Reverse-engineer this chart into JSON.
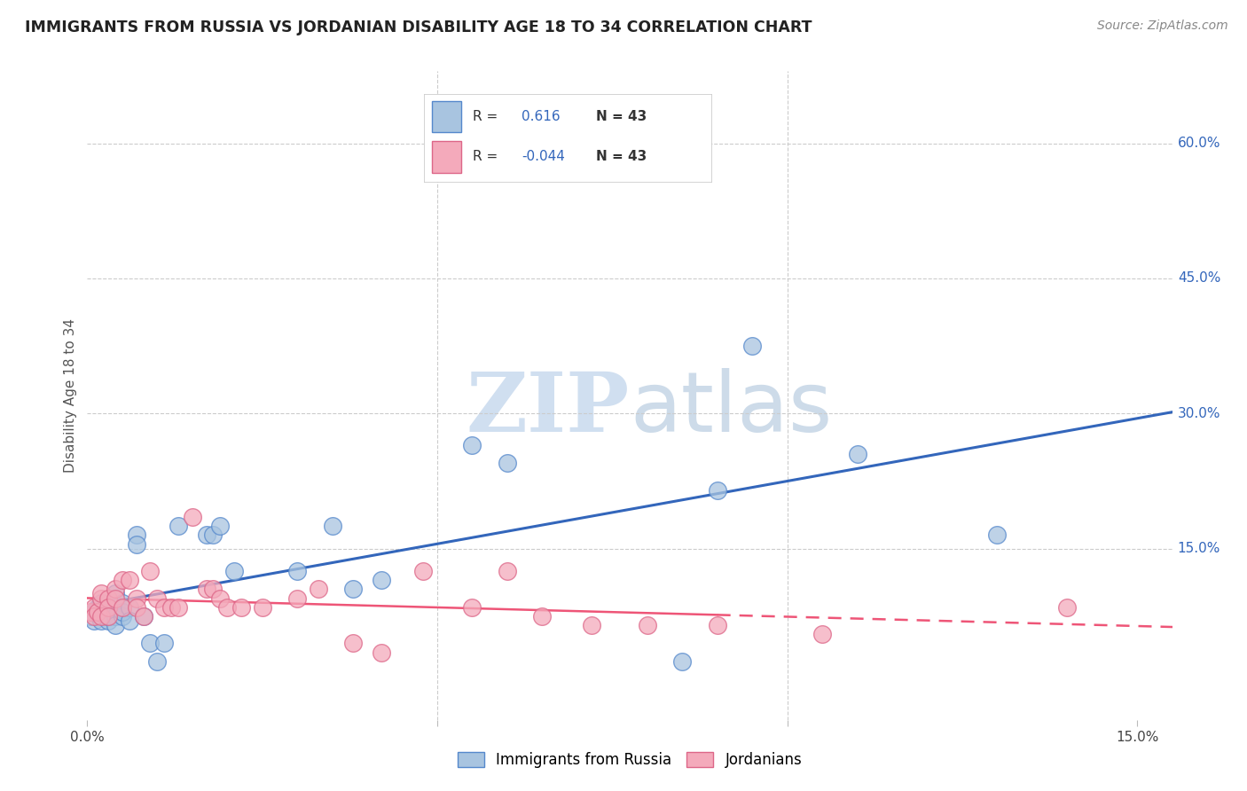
{
  "title": "IMMIGRANTS FROM RUSSIA VS JORDANIAN DISABILITY AGE 18 TO 34 CORRELATION CHART",
  "source": "Source: ZipAtlas.com",
  "ylabel": "Disability Age 18 to 34",
  "xlim": [
    0.0,
    0.155
  ],
  "ylim": [
    -0.04,
    0.68
  ],
  "blue_color": "#A8C4E0",
  "blue_edge_color": "#5588CC",
  "pink_color": "#F4AABB",
  "pink_edge_color": "#DD6688",
  "blue_line_color": "#3366BB",
  "pink_line_color": "#EE5577",
  "background_color": "#FFFFFF",
  "grid_color": "#CCCCCC",
  "watermark_color": "#D0DFF0",
  "russia_x": [
    0.0005,
    0.001,
    0.001,
    0.0015,
    0.002,
    0.002,
    0.002,
    0.0025,
    0.003,
    0.003,
    0.003,
    0.003,
    0.004,
    0.004,
    0.004,
    0.004,
    0.005,
    0.005,
    0.005,
    0.006,
    0.006,
    0.007,
    0.007,
    0.008,
    0.009,
    0.01,
    0.011,
    0.013,
    0.017,
    0.018,
    0.019,
    0.021,
    0.03,
    0.035,
    0.038,
    0.042,
    0.055,
    0.06,
    0.085,
    0.09,
    0.095,
    0.11,
    0.13
  ],
  "russia_y": [
    0.075,
    0.08,
    0.07,
    0.085,
    0.08,
    0.07,
    0.09,
    0.075,
    0.09,
    0.08,
    0.07,
    0.075,
    0.1,
    0.085,
    0.075,
    0.065,
    0.09,
    0.075,
    0.08,
    0.085,
    0.07,
    0.165,
    0.155,
    0.075,
    0.045,
    0.025,
    0.045,
    0.175,
    0.165,
    0.165,
    0.175,
    0.125,
    0.125,
    0.175,
    0.105,
    0.115,
    0.265,
    0.245,
    0.025,
    0.215,
    0.375,
    0.255,
    0.165
  ],
  "jordan_x": [
    0.0005,
    0.001,
    0.001,
    0.0015,
    0.002,
    0.002,
    0.002,
    0.003,
    0.003,
    0.003,
    0.004,
    0.004,
    0.005,
    0.005,
    0.006,
    0.007,
    0.007,
    0.008,
    0.009,
    0.01,
    0.011,
    0.012,
    0.013,
    0.015,
    0.017,
    0.018,
    0.019,
    0.02,
    0.022,
    0.025,
    0.03,
    0.033,
    0.038,
    0.042,
    0.048,
    0.055,
    0.06,
    0.065,
    0.072,
    0.08,
    0.09,
    0.105,
    0.14
  ],
  "jordan_y": [
    0.08,
    0.085,
    0.075,
    0.08,
    0.095,
    0.1,
    0.075,
    0.095,
    0.085,
    0.075,
    0.105,
    0.095,
    0.115,
    0.085,
    0.115,
    0.095,
    0.085,
    0.075,
    0.125,
    0.095,
    0.085,
    0.085,
    0.085,
    0.185,
    0.105,
    0.105,
    0.095,
    0.085,
    0.085,
    0.085,
    0.095,
    0.105,
    0.045,
    0.035,
    0.125,
    0.085,
    0.125,
    0.075,
    0.065,
    0.065,
    0.065,
    0.055,
    0.085
  ],
  "russia_R": 0.616,
  "jordan_R": -0.044,
  "n": 43
}
